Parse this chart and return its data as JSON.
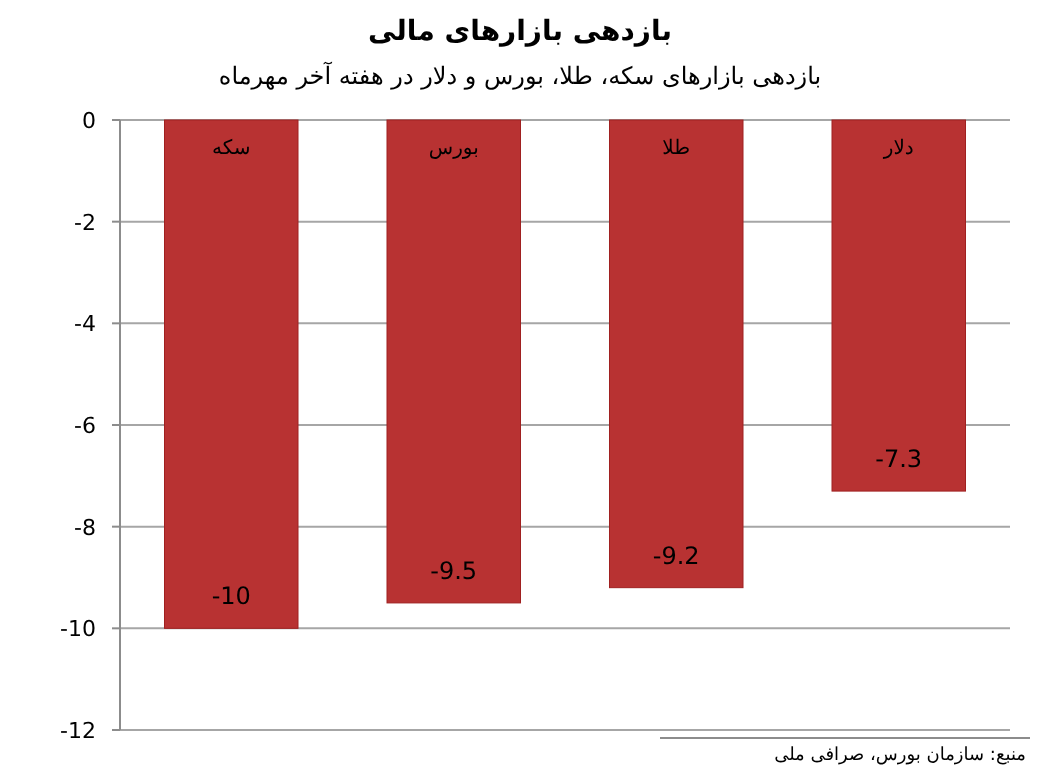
{
  "chart_data": {
    "type": "bar",
    "title": "بازدهی بازارهای مالی",
    "subtitle": "بازدهی بازارهای سکه، طلا، بورس و دلار در هفته آخر مهرماه",
    "categories": [
      "سکه",
      "بورس",
      "طلا",
      "دلار"
    ],
    "values": [
      -10,
      -9.5,
      -9.2,
      -7.3
    ],
    "color": "#b83232",
    "ylim": [
      -12,
      0
    ],
    "yticks": [
      0,
      -2,
      -4,
      -6,
      -8,
      -10,
      -12
    ],
    "grid": "y",
    "data_labels": true,
    "annotations": [
      "منبع: سازمان بورس، صرافی ملی"
    ]
  }
}
